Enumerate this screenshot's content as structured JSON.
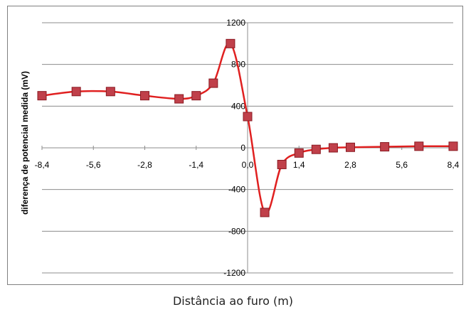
{
  "chart_data": {
    "type": "line",
    "title": "",
    "xlabel": "Distância ao furo (m)",
    "ylabel": "diferença de potencial medida (mV)",
    "xlim": [
      -8.4,
      8.4
    ],
    "ylim": [
      -1200,
      1200
    ],
    "x_ticks": [
      "-8,4",
      "-5,6",
      "-2,8",
      "-1,4",
      "0,0",
      "1,4",
      "2,8",
      "5,6",
      "8,4"
    ],
    "y_ticks": [
      "1200",
      "800",
      "400",
      "0",
      "-400",
      "-800",
      "-1200"
    ],
    "y_tick_values": [
      1200,
      800,
      400,
      0,
      -400,
      -800,
      -1200
    ],
    "grid": "horizontal",
    "series": [
      {
        "name": "",
        "color": "#e02020",
        "marker_color": "#c0404a",
        "x": [
          -8.4,
          -7.0,
          -5.6,
          -4.2,
          -2.8,
          -2.1,
          -1.4,
          -0.7,
          0.0,
          0.7,
          1.4,
          2.1,
          2.8,
          3.5,
          4.2,
          5.6,
          7.0,
          8.4
        ],
        "values": [
          500,
          540,
          540,
          500,
          470,
          500,
          620,
          1000,
          300,
          -620,
          -160,
          -50,
          -15,
          0,
          5,
          10,
          15,
          15
        ]
      }
    ]
  }
}
